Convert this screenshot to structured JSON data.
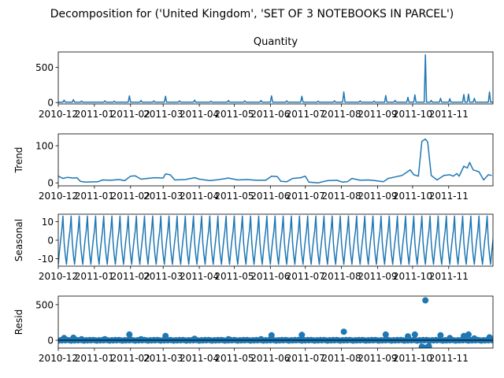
{
  "chart_data": {
    "type": "line",
    "suptitle": "Decomposition for ('United Kingdom', 'SET OF 3 NOTEBOOKS IN PARCEL')",
    "x_ticks": [
      "2010-12",
      "2011-01",
      "2011-02",
      "2011-03",
      "2011-04",
      "2011-05",
      "2011-06",
      "2011-07",
      "2011-08",
      "2011-09",
      "2011-10",
      "2011-11"
    ],
    "x_start": "2010-12-01",
    "x_end": "2011-12-09",
    "panels": [
      {
        "name": "observed",
        "title": "Quantity",
        "ylabel": "",
        "kind": "line",
        "ylim": [
          -20,
          720
        ],
        "yticks": [
          0,
          500
        ],
        "baseline": 5,
        "spikes": [
          {
            "date": "2010-12-06",
            "value": 35
          },
          {
            "date": "2010-12-14",
            "value": 42
          },
          {
            "date": "2010-12-21",
            "value": 22
          },
          {
            "date": "2011-01-10",
            "value": 25
          },
          {
            "date": "2011-01-18",
            "value": 20
          },
          {
            "date": "2011-01-31",
            "value": 95
          },
          {
            "date": "2011-02-10",
            "value": 30
          },
          {
            "date": "2011-02-21",
            "value": 25
          },
          {
            "date": "2011-03-03",
            "value": 90
          },
          {
            "date": "2011-03-15",
            "value": 25
          },
          {
            "date": "2011-03-28",
            "value": 35
          },
          {
            "date": "2011-04-11",
            "value": 20
          },
          {
            "date": "2011-04-26",
            "value": 30
          },
          {
            "date": "2011-05-10",
            "value": 25
          },
          {
            "date": "2011-05-24",
            "value": 30
          },
          {
            "date": "2011-06-02",
            "value": 95
          },
          {
            "date": "2011-06-15",
            "value": 25
          },
          {
            "date": "2011-06-28",
            "value": 90
          },
          {
            "date": "2011-07-12",
            "value": 20
          },
          {
            "date": "2011-07-26",
            "value": 25
          },
          {
            "date": "2011-08-03",
            "value": 150
          },
          {
            "date": "2011-08-17",
            "value": 25
          },
          {
            "date": "2011-08-29",
            "value": 20
          },
          {
            "date": "2011-09-08",
            "value": 100
          },
          {
            "date": "2011-09-16",
            "value": 30
          },
          {
            "date": "2011-09-27",
            "value": 75
          },
          {
            "date": "2011-10-03",
            "value": 110
          },
          {
            "date": "2011-10-12",
            "value": 680
          },
          {
            "date": "2011-10-17",
            "value": 30
          },
          {
            "date": "2011-10-25",
            "value": 60
          },
          {
            "date": "2011-11-02",
            "value": 55
          },
          {
            "date": "2011-11-14",
            "value": 115
          },
          {
            "date": "2011-11-18",
            "value": 120
          },
          {
            "date": "2011-11-23",
            "value": 60
          },
          {
            "date": "2011-12-06",
            "value": 150
          }
        ]
      },
      {
        "name": "trend",
        "title": "",
        "ylabel": "Trend",
        "kind": "line",
        "ylim": [
          -8,
          132
        ],
        "yticks": [
          0,
          100
        ],
        "points": [
          {
            "date": "2010-12-01",
            "value": 18
          },
          {
            "date": "2010-12-05",
            "value": 12
          },
          {
            "date": "2010-12-09",
            "value": 15
          },
          {
            "date": "2010-12-14",
            "value": 13
          },
          {
            "date": "2010-12-17",
            "value": 14
          },
          {
            "date": "2010-12-20",
            "value": 4
          },
          {
            "date": "2010-12-24",
            "value": 2
          },
          {
            "date": "2011-01-04",
            "value": 3
          },
          {
            "date": "2011-01-08",
            "value": 8
          },
          {
            "date": "2011-01-15",
            "value": 7
          },
          {
            "date": "2011-01-22",
            "value": 9
          },
          {
            "date": "2011-01-27",
            "value": 6
          },
          {
            "date": "2011-02-01",
            "value": 18
          },
          {
            "date": "2011-02-05",
            "value": 19
          },
          {
            "date": "2011-02-10",
            "value": 10
          },
          {
            "date": "2011-02-15",
            "value": 12
          },
          {
            "date": "2011-02-22",
            "value": 14
          },
          {
            "date": "2011-03-01",
            "value": 13
          },
          {
            "date": "2011-03-03",
            "value": 24
          },
          {
            "date": "2011-03-07",
            "value": 22
          },
          {
            "date": "2011-03-11",
            "value": 8
          },
          {
            "date": "2011-03-20",
            "value": 9
          },
          {
            "date": "2011-03-28",
            "value": 14
          },
          {
            "date": "2011-04-01",
            "value": 10
          },
          {
            "date": "2011-04-10",
            "value": 6
          },
          {
            "date": "2011-04-18",
            "value": 9
          },
          {
            "date": "2011-04-26",
            "value": 13
          },
          {
            "date": "2011-05-04",
            "value": 8
          },
          {
            "date": "2011-05-12",
            "value": 9
          },
          {
            "date": "2011-05-20",
            "value": 7
          },
          {
            "date": "2011-05-28",
            "value": 7
          },
          {
            "date": "2011-06-02",
            "value": 18
          },
          {
            "date": "2011-06-07",
            "value": 17
          },
          {
            "date": "2011-06-10",
            "value": 4
          },
          {
            "date": "2011-06-15",
            "value": 3
          },
          {
            "date": "2011-06-20",
            "value": 12
          },
          {
            "date": "2011-06-27",
            "value": 14
          },
          {
            "date": "2011-07-01",
            "value": 18
          },
          {
            "date": "2011-07-04",
            "value": 2
          },
          {
            "date": "2011-07-12",
            "value": 0
          },
          {
            "date": "2011-07-20",
            "value": 6
          },
          {
            "date": "2011-07-28",
            "value": 7
          },
          {
            "date": "2011-08-02",
            "value": 2
          },
          {
            "date": "2011-08-06",
            "value": 3
          },
          {
            "date": "2011-08-10",
            "value": 12
          },
          {
            "date": "2011-08-17",
            "value": 7
          },
          {
            "date": "2011-08-24",
            "value": 8
          },
          {
            "date": "2011-08-30",
            "value": 6
          },
          {
            "date": "2011-09-06",
            "value": 3
          },
          {
            "date": "2011-09-10",
            "value": 12
          },
          {
            "date": "2011-09-16",
            "value": 16
          },
          {
            "date": "2011-09-22",
            "value": 20
          },
          {
            "date": "2011-09-29",
            "value": 35
          },
          {
            "date": "2011-10-02",
            "value": 22
          },
          {
            "date": "2011-10-06",
            "value": 18
          },
          {
            "date": "2011-10-09",
            "value": 112
          },
          {
            "date": "2011-10-12",
            "value": 118
          },
          {
            "date": "2011-10-14",
            "value": 110
          },
          {
            "date": "2011-10-17",
            "value": 20
          },
          {
            "date": "2011-10-22",
            "value": 8
          },
          {
            "date": "2011-10-28",
            "value": 20
          },
          {
            "date": "2011-11-02",
            "value": 22
          },
          {
            "date": "2011-11-05",
            "value": 18
          },
          {
            "date": "2011-11-08",
            "value": 25
          },
          {
            "date": "2011-11-10",
            "value": 18
          },
          {
            "date": "2011-11-14",
            "value": 45
          },
          {
            "date": "2011-11-17",
            "value": 40
          },
          {
            "date": "2011-11-19",
            "value": 55
          },
          {
            "date": "2011-11-22",
            "value": 35
          },
          {
            "date": "2011-11-27",
            "value": 30
          },
          {
            "date": "2011-12-01",
            "value": 8
          },
          {
            "date": "2011-12-05",
            "value": 22
          },
          {
            "date": "2011-12-08",
            "value": 20
          }
        ]
      },
      {
        "name": "seasonal",
        "title": "",
        "ylabel": "Seasonal",
        "kind": "line",
        "ylim": [
          -14,
          14
        ],
        "yticks": [
          -10,
          0,
          10
        ],
        "period_days": 7,
        "cycle": [
          -13,
          -6,
          0,
          5,
          13,
          -1,
          -8
        ]
      },
      {
        "name": "resid",
        "title": "",
        "ylabel": "Resid",
        "kind": "scatter",
        "ylim": [
          -110,
          620
        ],
        "yticks": [
          0,
          500
        ],
        "baseline": 0,
        "points": [
          {
            "date": "2010-12-06",
            "value": 30
          },
          {
            "date": "2010-12-14",
            "value": 35
          },
          {
            "date": "2010-12-21",
            "value": 15
          },
          {
            "date": "2011-01-10",
            "value": 15
          },
          {
            "date": "2011-01-31",
            "value": 80
          },
          {
            "date": "2011-02-10",
            "value": 15
          },
          {
            "date": "2011-03-03",
            "value": 60
          },
          {
            "date": "2011-03-28",
            "value": 20
          },
          {
            "date": "2011-04-26",
            "value": 15
          },
          {
            "date": "2011-05-24",
            "value": 15
          },
          {
            "date": "2011-06-02",
            "value": 70
          },
          {
            "date": "2011-06-28",
            "value": 75
          },
          {
            "date": "2011-08-03",
            "value": 120
          },
          {
            "date": "2011-09-08",
            "value": 80
          },
          {
            "date": "2011-09-27",
            "value": 55
          },
          {
            "date": "2011-10-03",
            "value": 80
          },
          {
            "date": "2011-10-09",
            "value": -90
          },
          {
            "date": "2011-10-10",
            "value": -100
          },
          {
            "date": "2011-10-12",
            "value": 560
          },
          {
            "date": "2011-10-14",
            "value": -95
          },
          {
            "date": "2011-10-15",
            "value": -85
          },
          {
            "date": "2011-10-25",
            "value": 70
          },
          {
            "date": "2011-11-02",
            "value": 30
          },
          {
            "date": "2011-11-14",
            "value": 60
          },
          {
            "date": "2011-11-18",
            "value": 80
          },
          {
            "date": "2011-11-23",
            "value": 25
          },
          {
            "date": "2011-12-06",
            "value": 40
          }
        ]
      }
    ],
    "colors": {
      "series": "#1f77b4",
      "axes": "#000000"
    },
    "grid": false
  }
}
